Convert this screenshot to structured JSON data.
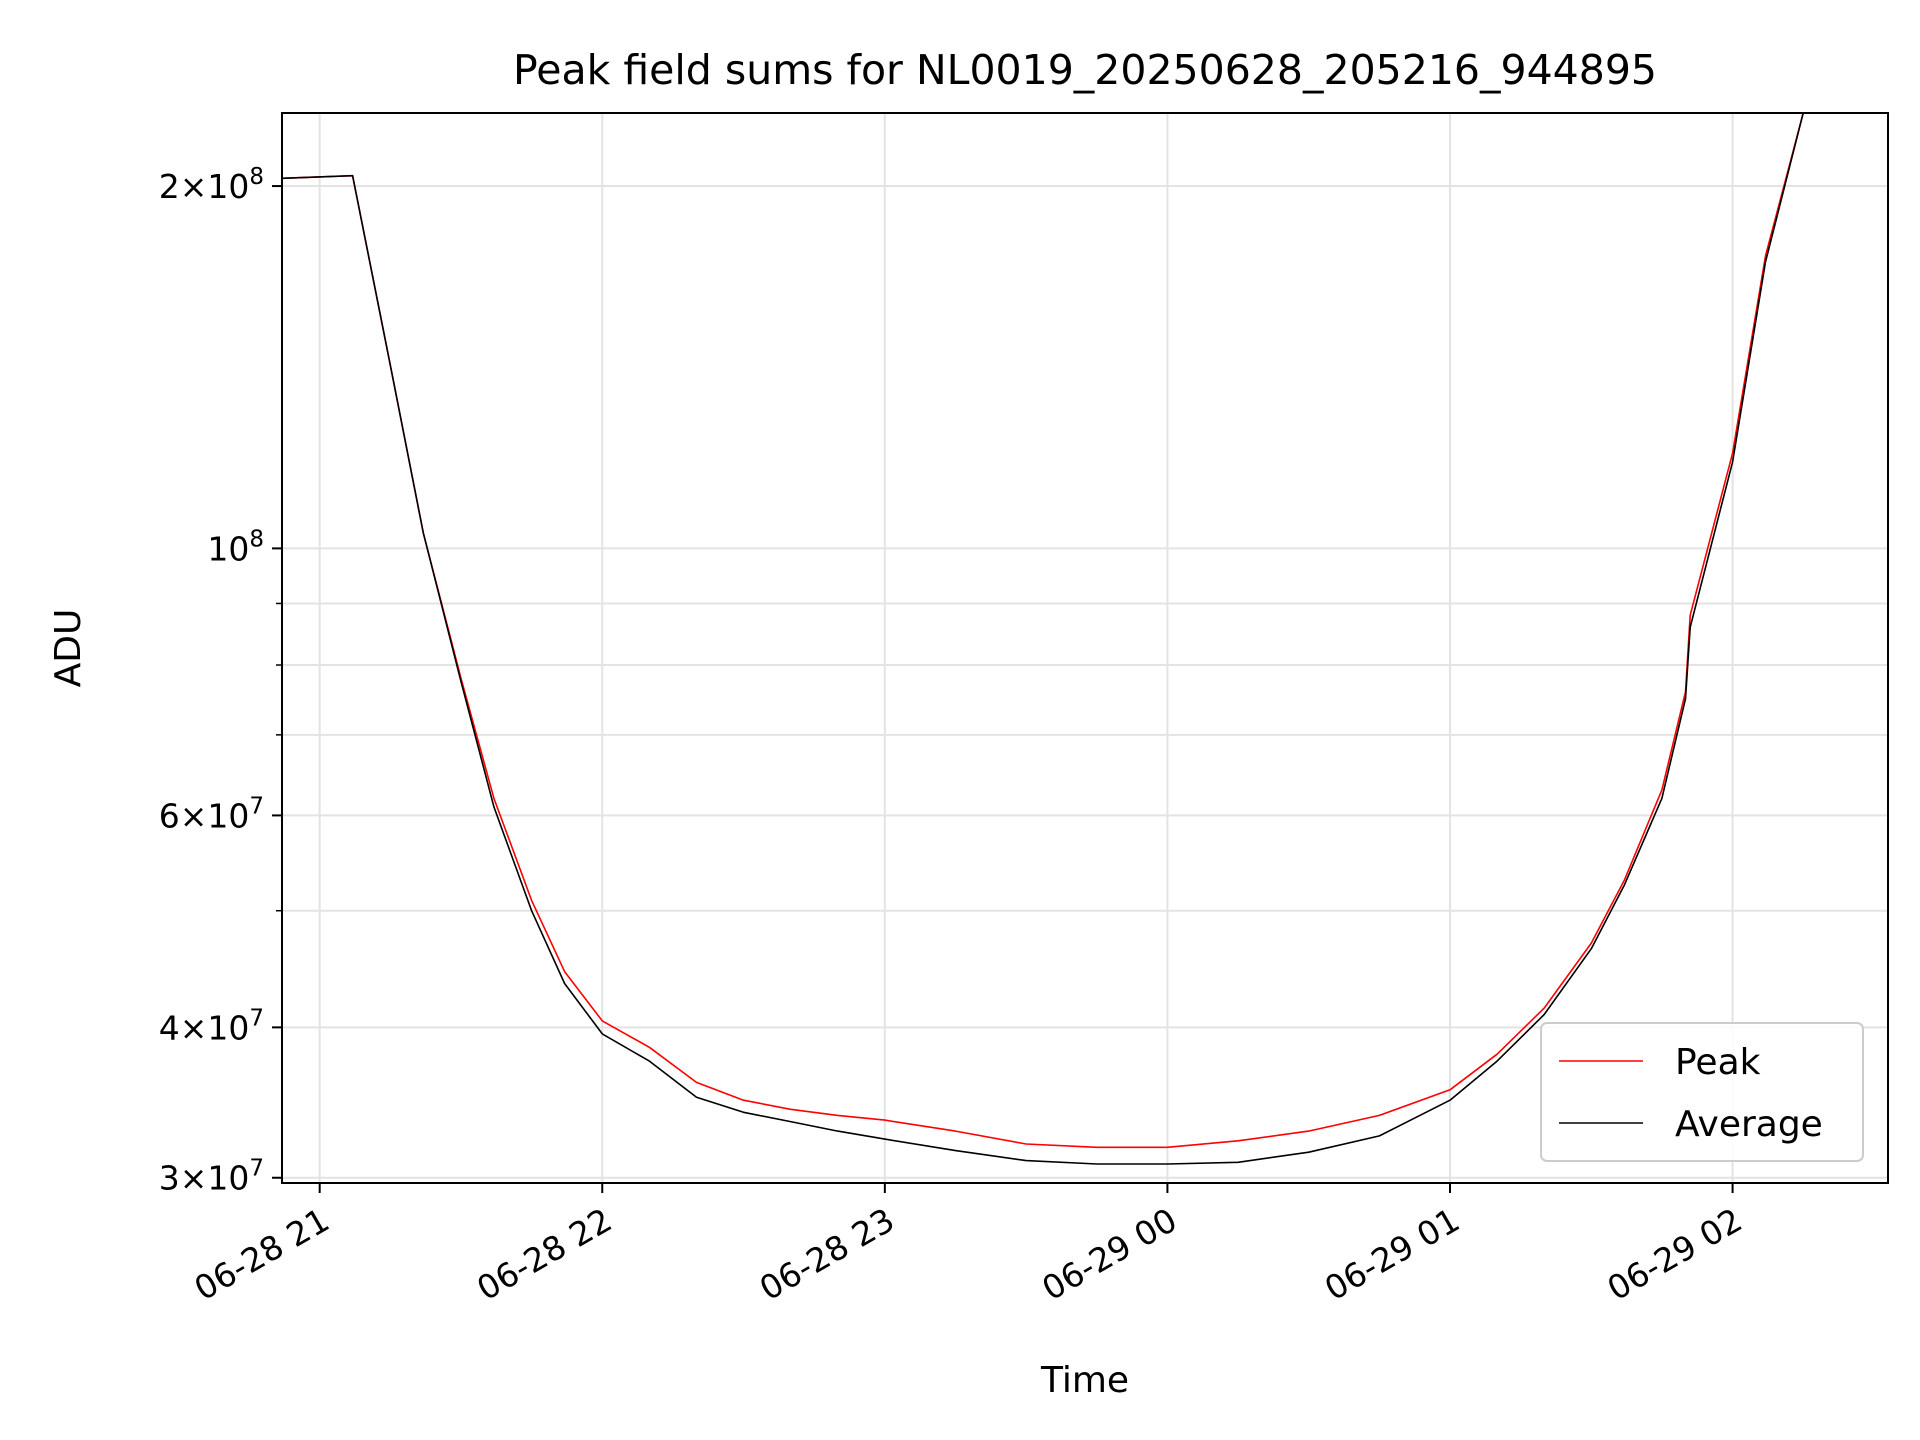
{
  "chart_data": {
    "type": "line",
    "title": "Peak field sums for NL0019_20250628_205216_944895",
    "xlabel": "Time",
    "ylabel": "ADU",
    "y_scale": "log",
    "ylim": [
      29700000,
      230000000
    ],
    "xlim": [
      "2025-06-28 20:52",
      "2025-06-29 02:33"
    ],
    "grid": true,
    "legend_position": "lower right",
    "x_ticks": [
      {
        "time": "2025-06-28 21:00",
        "label": "06-28 21"
      },
      {
        "time": "2025-06-28 22:00",
        "label": "06-28 22"
      },
      {
        "time": "2025-06-28 23:00",
        "label": "06-28 23"
      },
      {
        "time": "2025-06-29 00:00",
        "label": "06-29 00"
      },
      {
        "time": "2025-06-29 01:00",
        "label": "06-29 01"
      },
      {
        "time": "2025-06-29 02:00",
        "label": "06-29 02"
      }
    ],
    "y_ticks": [
      {
        "value": 30000000,
        "base": "3",
        "exp": "7"
      },
      {
        "value": 40000000,
        "base": "4",
        "exp": "7"
      },
      {
        "value": 60000000,
        "base": "6",
        "exp": "7"
      },
      {
        "value": 100000000,
        "base": "",
        "exp": "8"
      },
      {
        "value": 200000000,
        "base": "2",
        "exp": "8"
      }
    ],
    "y_minor_ticks": [
      50000000,
      70000000,
      80000000,
      90000000
    ],
    "series": [
      {
        "name": "Peak",
        "color": "#ff0000",
        "x": [
          "2025-06-28 20:52",
          "2025-06-28 21:07",
          "2025-06-28 21:15",
          "2025-06-28 21:22",
          "2025-06-28 21:30",
          "2025-06-28 21:37",
          "2025-06-28 21:45",
          "2025-06-28 21:52",
          "2025-06-28 22:00",
          "2025-06-28 22:10",
          "2025-06-28 22:20",
          "2025-06-28 22:30",
          "2025-06-28 22:40",
          "2025-06-28 22:50",
          "2025-06-28 23:00",
          "2025-06-28 23:15",
          "2025-06-28 23:30",
          "2025-06-28 23:45",
          "2025-06-29 00:00",
          "2025-06-29 00:15",
          "2025-06-29 00:30",
          "2025-06-29 00:45",
          "2025-06-29 01:00",
          "2025-06-29 01:10",
          "2025-06-29 01:20",
          "2025-06-29 01:30",
          "2025-06-29 01:37",
          "2025-06-29 01:45",
          "2025-06-29 01:50",
          "2025-06-29 01:51",
          "2025-06-29 02:00",
          "2025-06-29 02:07",
          "2025-06-29 02:15",
          "2025-06-29 02:33"
        ],
        "values": [
          203000000,
          204000000,
          142000000,
          103000000,
          78000000,
          62000000,
          51000000,
          44500000,
          40500000,
          38500000,
          36000000,
          34800000,
          34200000,
          33800000,
          33500000,
          32800000,
          32000000,
          31800000,
          31800000,
          32200000,
          32800000,
          33800000,
          35500000,
          38000000,
          41500000,
          47000000,
          53000000,
          63000000,
          76000000,
          88000000,
          120000000,
          175000000,
          230000000,
          230000000
        ]
      },
      {
        "name": "Average",
        "color": "#000000",
        "x": [
          "2025-06-28 20:52",
          "2025-06-28 21:07",
          "2025-06-28 21:15",
          "2025-06-28 21:22",
          "2025-06-28 21:30",
          "2025-06-28 21:37",
          "2025-06-28 21:45",
          "2025-06-28 21:52",
          "2025-06-28 22:00",
          "2025-06-28 22:10",
          "2025-06-28 22:20",
          "2025-06-28 22:30",
          "2025-06-28 22:40",
          "2025-06-28 22:50",
          "2025-06-28 23:00",
          "2025-06-28 23:15",
          "2025-06-28 23:30",
          "2025-06-28 23:45",
          "2025-06-29 00:00",
          "2025-06-29 00:15",
          "2025-06-29 00:30",
          "2025-06-29 00:45",
          "2025-06-29 01:00",
          "2025-06-29 01:10",
          "2025-06-29 01:20",
          "2025-06-29 01:30",
          "2025-06-29 01:37",
          "2025-06-29 01:45",
          "2025-06-29 01:50",
          "2025-06-29 01:51",
          "2025-06-29 02:00",
          "2025-06-29 02:07",
          "2025-06-29 02:15",
          "2025-06-29 02:33"
        ],
        "values": [
          203000000,
          204000000,
          142000000,
          103000000,
          77500000,
          61000000,
          50000000,
          43500000,
          39500000,
          37500000,
          35000000,
          34000000,
          33400000,
          32800000,
          32300000,
          31600000,
          31000000,
          30800000,
          30800000,
          30900000,
          31500000,
          32500000,
          34800000,
          37500000,
          41000000,
          46500000,
          52500000,
          62000000,
          75000000,
          86000000,
          118000000,
          173000000,
          230000000,
          230000000
        ]
      }
    ]
  }
}
